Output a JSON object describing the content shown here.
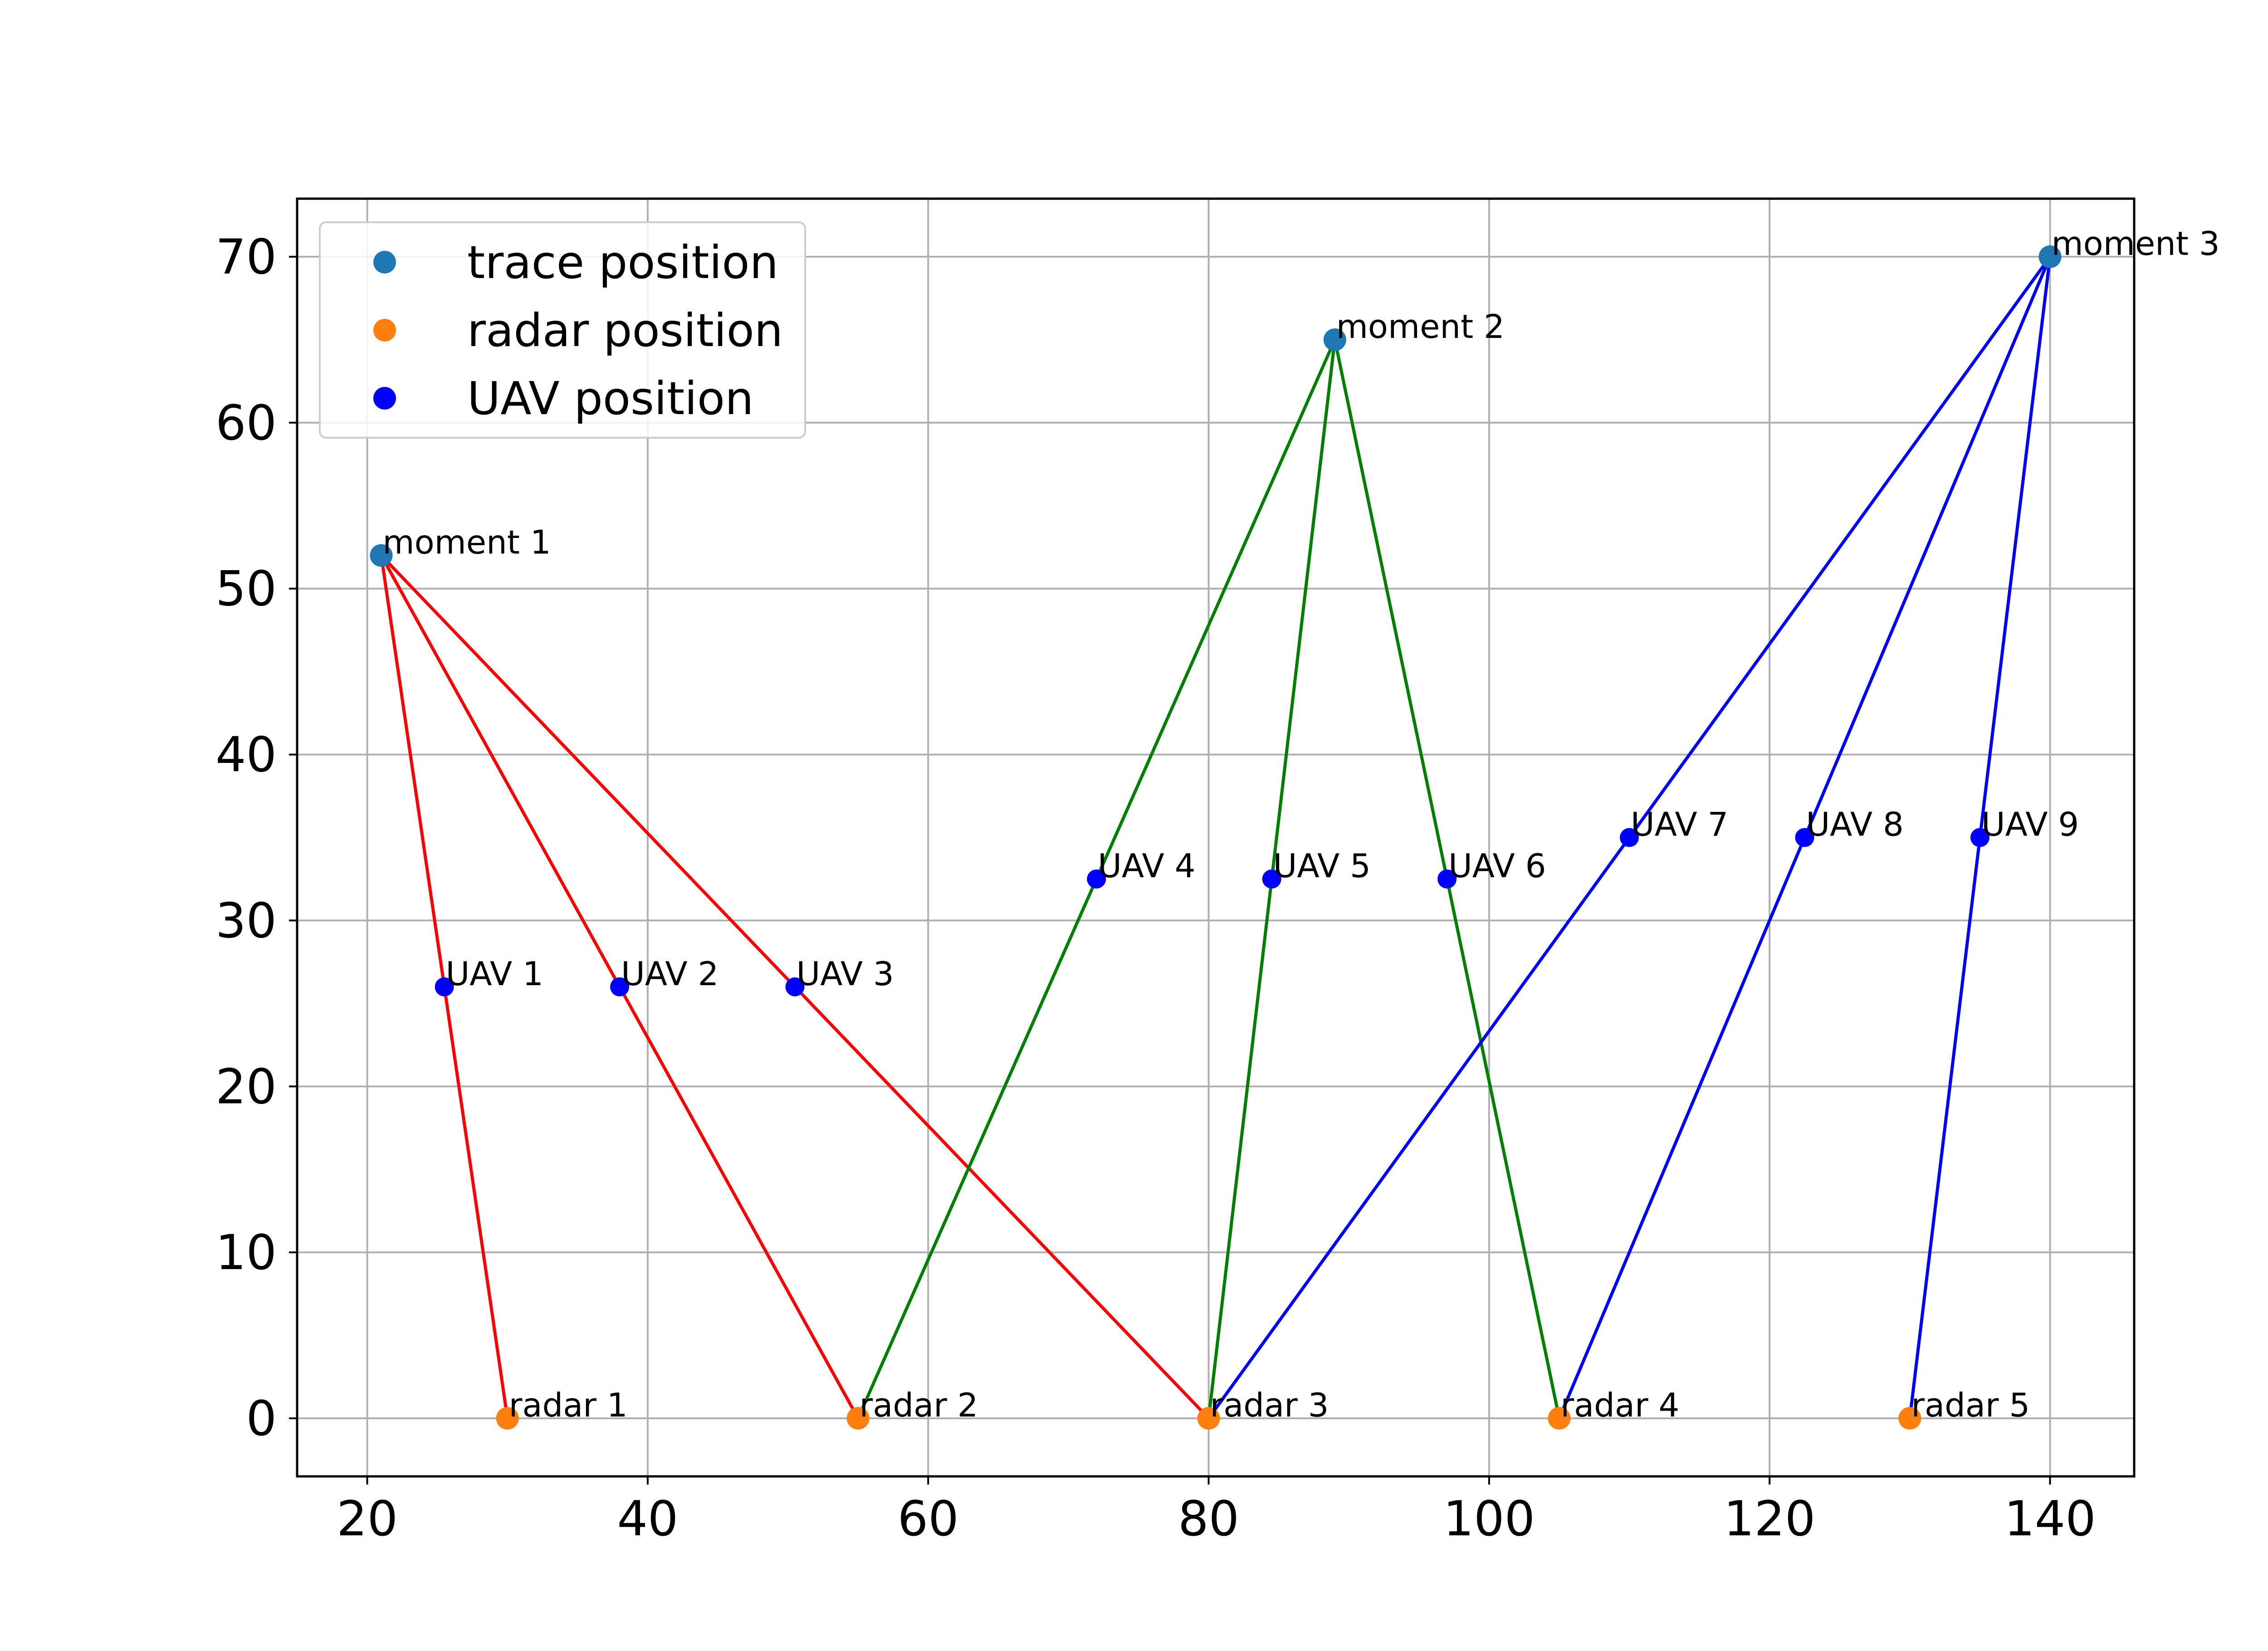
{
  "chart_data": {
    "type": "scatter",
    "title": "",
    "xlabel": "",
    "ylabel": "",
    "xlim": [
      15,
      146
    ],
    "ylim": [
      -3.5,
      73.5
    ],
    "xticks": [
      20,
      40,
      60,
      80,
      100,
      120,
      140
    ],
    "yticks": [
      0,
      10,
      20,
      30,
      40,
      50,
      60,
      70
    ],
    "grid": true,
    "legend_position": "top-left",
    "series": [
      {
        "name": "trace position",
        "color": "#1f77b4",
        "points": [
          {
            "x": 21,
            "y": 52,
            "label": "moment 1"
          },
          {
            "x": 89,
            "y": 65,
            "label": "moment 2"
          },
          {
            "x": 140,
            "y": 70,
            "label": "moment 3"
          }
        ]
      },
      {
        "name": "radar position",
        "color": "#ff7f0e",
        "points": [
          {
            "x": 30,
            "y": 0,
            "label": "radar 1"
          },
          {
            "x": 55,
            "y": 0,
            "label": "radar 2"
          },
          {
            "x": 80,
            "y": 0,
            "label": "radar 3"
          },
          {
            "x": 105,
            "y": 0,
            "label": "radar 4"
          },
          {
            "x": 130,
            "y": 0,
            "label": "radar 5"
          }
        ]
      },
      {
        "name": "UAV position",
        "color": "#0000ff",
        "points": [
          {
            "x": 25.5,
            "y": 26,
            "label": "UAV 1"
          },
          {
            "x": 38,
            "y": 26,
            "label": "UAV 2"
          },
          {
            "x": 50.5,
            "y": 26,
            "label": "UAV 3"
          },
          {
            "x": 72,
            "y": 32.5,
            "label": "UAV 4"
          },
          {
            "x": 84.5,
            "y": 32.5,
            "label": "UAV 5"
          },
          {
            "x": 97,
            "y": 32.5,
            "label": "UAV 6"
          },
          {
            "x": 110,
            "y": 35,
            "label": "UAV 7"
          },
          {
            "x": 122.5,
            "y": 35,
            "label": "UAV 8"
          },
          {
            "x": 135,
            "y": 35,
            "label": "UAV 9"
          }
        ]
      }
    ],
    "lines": [
      {
        "color": "#ff0000",
        "from": [
          21,
          52
        ],
        "to": [
          30,
          0
        ]
      },
      {
        "color": "#ff0000",
        "from": [
          21,
          52
        ],
        "to": [
          55,
          0
        ]
      },
      {
        "color": "#ff0000",
        "from": [
          21,
          52
        ],
        "to": [
          80,
          0
        ]
      },
      {
        "color": "#008000",
        "from": [
          89,
          65
        ],
        "to": [
          55,
          0
        ]
      },
      {
        "color": "#008000",
        "from": [
          89,
          65
        ],
        "to": [
          80,
          0
        ]
      },
      {
        "color": "#008000",
        "from": [
          89,
          65
        ],
        "to": [
          105,
          0
        ]
      },
      {
        "color": "#0000ff",
        "from": [
          140,
          70
        ],
        "to": [
          80,
          0
        ]
      },
      {
        "color": "#0000ff",
        "from": [
          140,
          70
        ],
        "to": [
          105,
          0
        ]
      },
      {
        "color": "#0000ff",
        "from": [
          140,
          70
        ],
        "to": [
          130,
          0
        ]
      }
    ]
  }
}
